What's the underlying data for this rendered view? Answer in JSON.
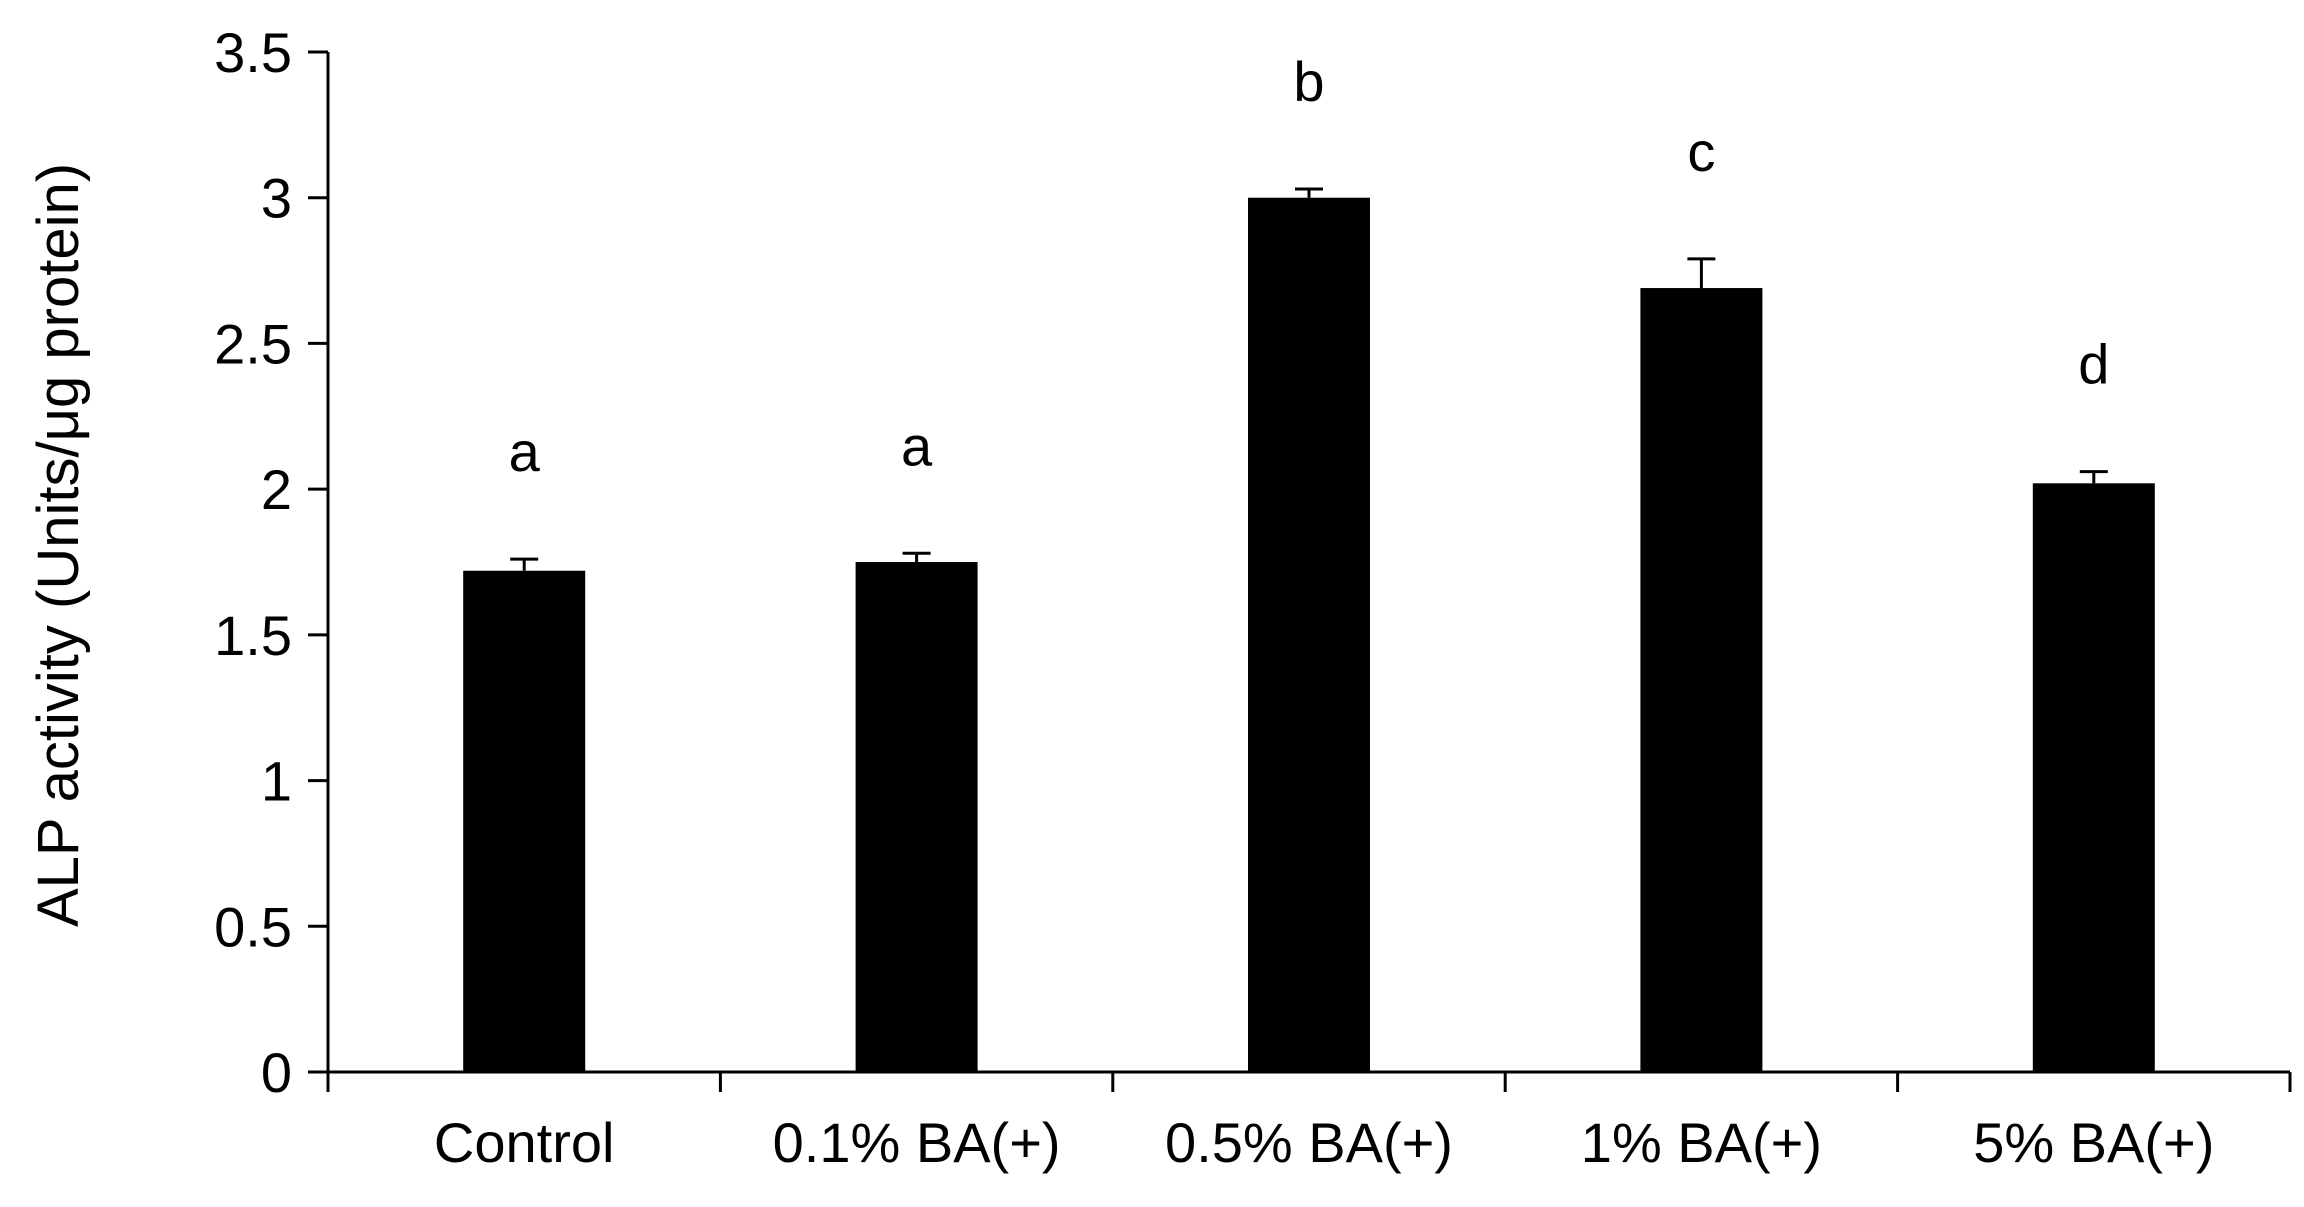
{
  "chart_data": {
    "type": "bar",
    "categories": [
      "Control",
      "0.1%  BA(+)",
      "0.5%  BA(+)",
      "1%  BA(+)",
      "5%  BA(+)"
    ],
    "values": [
      1.72,
      1.75,
      3.0,
      2.69,
      2.02
    ],
    "errors": [
      0.04,
      0.03,
      0.03,
      0.1,
      0.04
    ],
    "significance_labels": [
      "a",
      "a",
      "b",
      "c",
      "d"
    ],
    "title": "",
    "xlabel": "",
    "ylabel": "ALP activity (Units/μg protein)",
    "ylim": [
      0,
      3.5
    ],
    "yticks": [
      0,
      0.5,
      1,
      1.5,
      2,
      2.5,
      3,
      3.5
    ],
    "ytick_labels": [
      "0",
      "0.5",
      "1",
      "1.5",
      "2",
      "2.5",
      "3",
      "3.5"
    ],
    "grid": false,
    "bar_color": "#000000"
  }
}
